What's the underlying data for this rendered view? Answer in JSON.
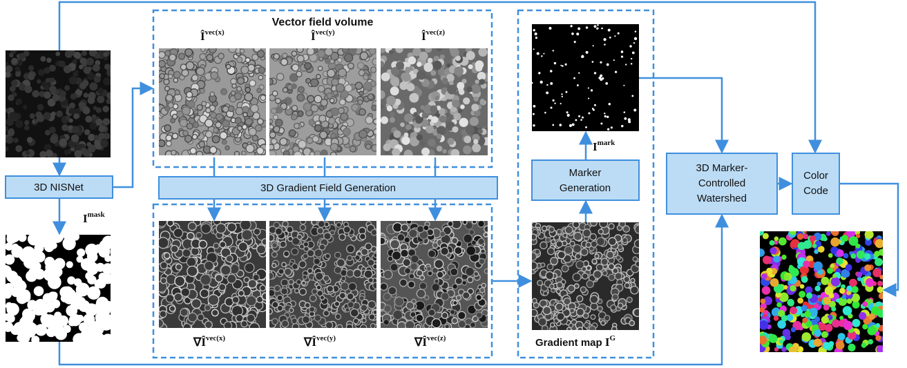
{
  "input": {
    "label": "3D NISNet"
  },
  "mask": {
    "base": "I",
    "sup": "mask"
  },
  "vector_field": {
    "title": "Vector field volume",
    "images": [
      {
        "base": "Î",
        "sup": "vec(x)"
      },
      {
        "base": "Î",
        "sup": "vec(y)"
      },
      {
        "base": "Î",
        "sup": "vec(z)"
      }
    ]
  },
  "gradient_field": {
    "label": "3D Gradient Field Generation",
    "images": [
      {
        "base": "∇Î",
        "sup": "vec(x)"
      },
      {
        "base": "∇Î",
        "sup": "vec(y)"
      },
      {
        "base": "∇Î",
        "sup": "vec(z)"
      }
    ]
  },
  "marker": {
    "lines": [
      "Marker",
      "Generation"
    ],
    "image": {
      "base": "I",
      "sup": "mark"
    }
  },
  "gradient_map": {
    "text": "Gradient map ",
    "base": "I",
    "sup": "G"
  },
  "watershed": {
    "lines": [
      "3D Marker-",
      "Controlled",
      "Watershed"
    ]
  },
  "color_code": {
    "lines": [
      "Color",
      "Code"
    ]
  }
}
